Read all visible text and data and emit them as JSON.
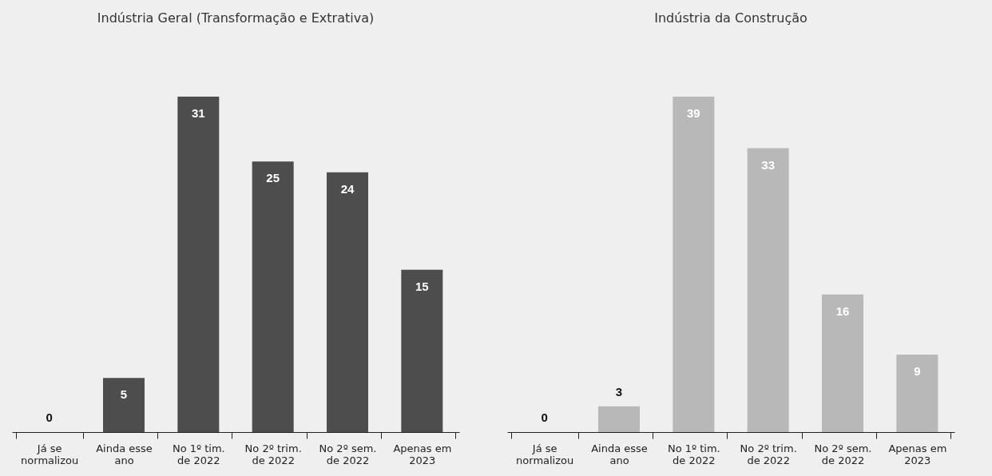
{
  "chart_data": [
    {
      "type": "bar",
      "title": "Indústria Geral (Transformação e Extrativa)",
      "categories": [
        "Já se\nnormalizou",
        "Ainda esse\nano",
        "No 1º tim.\nde 2022",
        "No 2º trim.\nde 2022",
        "No 2º sem.\nde 2022",
        "Apenas em\n2023"
      ],
      "values": [
        0,
        5,
        31,
        25,
        24,
        15
      ],
      "color": "#4d4d4d",
      "data_labels": true
    },
    {
      "type": "bar",
      "title": "Indústria da Construção",
      "categories": [
        "Já se\nnormalizou",
        "Ainda esse\nano",
        "No 1º tim.\nde 2022",
        "No 2º trim.\nde 2022",
        "No 2º sem.\nde 2022",
        "Apenas em\n2023"
      ],
      "values": [
        0,
        3,
        39,
        33,
        16,
        9
      ],
      "color": "#b8b8b8",
      "data_labels": true
    }
  ]
}
